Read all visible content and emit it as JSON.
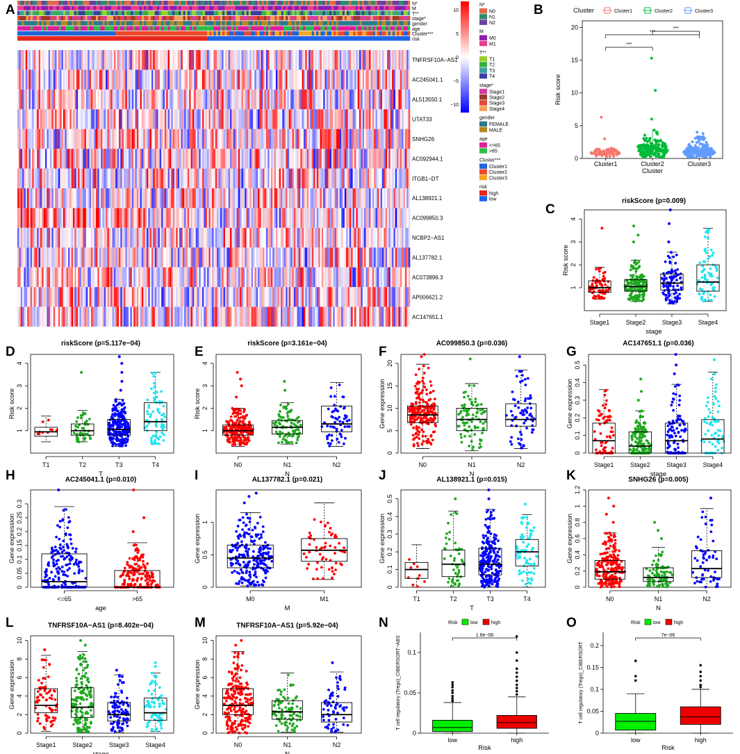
{
  "panel_labels": [
    "A",
    "B",
    "C",
    "D",
    "E",
    "F",
    "G",
    "H",
    "I",
    "J",
    "K",
    "L",
    "M",
    "N",
    "O"
  ],
  "colors": {
    "red": "#ff0000",
    "green": "#1fa91f",
    "blue": "#0000ff",
    "cyan": "#1ee6f0",
    "lowgreen": "#00ee00",
    "highred": "#ee0000"
  },
  "heatmap": {
    "annotation_rows": [
      "N*",
      "M",
      "T**",
      "stage*",
      "gender",
      "age",
      "Cluster***",
      "risk"
    ],
    "genes": [
      "TNFRSF10A−AS1",
      "AC245041.1",
      "AL513550.1",
      "UTAT33",
      "SNHG26",
      "AC092944.1",
      "ITGB1−DT",
      "AL138921.1",
      "AC099850.3",
      "NCBP2−AS1",
      "AL137782.1",
      "AC073896.3",
      "AP006621.2",
      "AC147651.1"
    ],
    "colorbar_ticks": [
      "10",
      "5",
      "0",
      "−5",
      "−10"
    ],
    "legend": [
      {
        "title": "N*",
        "items": [
          {
            "label": "N0",
            "color": "#e26a4a"
          },
          {
            "label": "N1",
            "color": "#2e8b6e"
          },
          {
            "label": "N2",
            "color": "#6c3fa0"
          }
        ]
      },
      {
        "title": "M",
        "items": [
          {
            "label": "M0",
            "color": "#8a1fb0"
          },
          {
            "label": "M1",
            "color": "#e83e8c"
          }
        ]
      },
      {
        "title": "T**",
        "items": [
          {
            "label": "T1",
            "color": "#9ad02c"
          },
          {
            "label": "T2",
            "color": "#35b13c"
          },
          {
            "label": "T3",
            "color": "#3aa0a0"
          },
          {
            "label": "T4",
            "color": "#3b3f9e"
          }
        ]
      },
      {
        "title": "stage*",
        "items": [
          {
            "label": "Stage1",
            "color": "#d03fa0"
          },
          {
            "label": "Stage2",
            "color": "#9c3a2a"
          },
          {
            "label": "Stage3",
            "color": "#e04a3a"
          },
          {
            "label": "Stage4",
            "color": "#f2a05a"
          }
        ]
      },
      {
        "title": "gender",
        "items": [
          {
            "label": "FEMALE",
            "color": "#2a7a8c"
          },
          {
            "label": "MALE",
            "color": "#b8861e"
          }
        ]
      },
      {
        "title": "age",
        "items": [
          {
            "label": "<=65",
            "color": "#e01e9a"
          },
          {
            "label": ">65",
            "color": "#2ebd4a"
          }
        ]
      },
      {
        "title": "Cluster***",
        "items": [
          {
            "label": "Cluster1",
            "color": "#2166d8"
          },
          {
            "label": "Cluster2",
            "color": "#f0482a"
          },
          {
            "label": "Cluster3",
            "color": "#f5a623"
          }
        ]
      },
      {
        "title": "risk",
        "items": [
          {
            "label": "high",
            "color": "#e8261c"
          },
          {
            "label": "low",
            "color": "#1e64e8"
          }
        ]
      }
    ]
  },
  "chart_data": [
    {
      "id": "B",
      "type": "box+jitter",
      "title": "",
      "legend_title": "Cluster",
      "legend": [
        "Cluster1",
        "Cluster2",
        "Cluster3"
      ],
      "xlabel": "Cluster",
      "ylabel": "Risk score",
      "categories": [
        "Cluster1",
        "Cluster2",
        "Cluster3"
      ],
      "ylim": [
        0,
        21
      ],
      "yticks": [
        0,
        5,
        10,
        15,
        20
      ],
      "medians": [
        0.8,
        1.4,
        1.0
      ],
      "q1": [
        0.6,
        1.0,
        0.8
      ],
      "q3": [
        1.0,
        2.0,
        1.3
      ],
      "whisker_low": [
        0.2,
        0.2,
        0.2
      ],
      "whisker_high": [
        1.6,
        4.5,
        3.4
      ],
      "n": [
        60,
        150,
        220
      ],
      "outliers": [
        [
          6.3,
          3.0
        ],
        [
          15.3,
          10.4,
          6.0
        ],
        [
          4.0,
          3.8
        ]
      ],
      "comparisons": [
        {
          "pair": [
            "Cluster1",
            "Cluster2"
          ],
          "label": "***",
          "y": 17.3
        },
        {
          "pair": [
            "Cluster1",
            "Cluster3"
          ],
          "label": "***",
          "y": 19.8
        },
        {
          "pair": [
            "Cluster2",
            "Cluster3"
          ],
          "label": "***",
          "y": 22.1
        }
      ],
      "colors": [
        "#f8766d",
        "#00ba38",
        "#619cff"
      ]
    },
    {
      "id": "C",
      "type": "box+jitter",
      "title": "riskScore (p=0.009)",
      "xlabel": "stage",
      "ylabel": "Risk score",
      "categories": [
        "Stage1",
        "Stage2",
        "Stage3",
        "Stage4"
      ],
      "ylim": [
        0,
        4.4
      ],
      "yticks": [
        1,
        2,
        3,
        4
      ],
      "medians": [
        1.0,
        1.05,
        1.2,
        1.25
      ],
      "q1": [
        0.8,
        0.85,
        0.9,
        0.85
      ],
      "q3": [
        1.3,
        1.35,
        1.6,
        2.0
      ],
      "whisker_low": [
        0.5,
        0.4,
        0.3,
        0.4
      ],
      "whisker_high": [
        1.9,
        2.2,
        2.55,
        3.6
      ],
      "n": [
        70,
        160,
        100,
        70
      ],
      "outliers": [
        [
          3.6
        ],
        [
          3.0,
          3.3,
          3.7
        ],
        [
          3.0,
          3.8,
          4.4
        ],
        []
      ],
      "colors": [
        "#ff0000",
        "#1fa91f",
        "#0000ff",
        "#1ee6f0"
      ]
    },
    {
      "id": "D",
      "type": "box+jitter",
      "title": "riskScore (p=5.117e−04)",
      "xlabel": "T",
      "ylabel": "Risk score",
      "categories": [
        "T1",
        "T2",
        "T3",
        "T4"
      ],
      "ylim": [
        0,
        4.4
      ],
      "yticks": [
        1,
        2,
        3,
        4
      ],
      "medians": [
        0.95,
        1.0,
        1.05,
        1.4
      ],
      "q1": [
        0.75,
        0.8,
        0.8,
        1.0
      ],
      "q3": [
        1.15,
        1.3,
        1.5,
        2.25
      ],
      "whisker_low": [
        0.5,
        0.5,
        0.3,
        0.4
      ],
      "whisker_high": [
        1.65,
        1.9,
        2.4,
        3.6
      ],
      "n": [
        10,
        50,
        300,
        70
      ],
      "outliers": [
        [],
        [
          3.6
        ],
        [
          2.8,
          3.2,
          3.6,
          4.0,
          4.3
        ],
        []
      ],
      "colors": [
        "#ff0000",
        "#1fa91f",
        "#0000ff",
        "#1ee6f0"
      ]
    },
    {
      "id": "E",
      "type": "box+jitter",
      "title": "riskScore (p=3.161e−04)",
      "xlabel": "N",
      "ylabel": "Risk score",
      "categories": [
        "N0",
        "N1",
        "N2"
      ],
      "ylim": [
        0,
        4.4
      ],
      "yticks": [
        1,
        2,
        3,
        4
      ],
      "medians": [
        1.0,
        1.15,
        1.3
      ],
      "q1": [
        0.8,
        0.85,
        0.95
      ],
      "q3": [
        1.25,
        1.45,
        2.1
      ],
      "whisker_low": [
        0.3,
        0.4,
        0.3
      ],
      "whisker_high": [
        2.0,
        2.25,
        3.15
      ],
      "n": [
        250,
        90,
        60
      ],
      "outliers": [
        [
          2.5,
          3.0,
          3.3,
          3.6
        ],
        [
          2.8,
          3.2
        ],
        []
      ],
      "colors": [
        "#ff0000",
        "#1fa91f",
        "#0000ff"
      ]
    },
    {
      "id": "F",
      "type": "box+jitter",
      "title": "AC099850.3 (p=0.036)",
      "xlabel": "N",
      "ylabel": "Gene expression",
      "categories": [
        "N0",
        "N1",
        "N2"
      ],
      "ylim": [
        0,
        22
      ],
      "yticks": [
        0,
        5,
        10,
        15,
        20
      ],
      "medians": [
        8.5,
        7.5,
        7.5
      ],
      "q1": [
        6.8,
        5.0,
        6.0
      ],
      "q3": [
        10.5,
        10.0,
        11.0
      ],
      "whisker_low": [
        1.0,
        0.5,
        1.0
      ],
      "whisker_high": [
        19.8,
        15.5,
        18.5
      ],
      "n": [
        280,
        90,
        70
      ],
      "outliers": [
        [
          21.5,
          22.0
        ],
        [
          21.0
        ],
        [
          21.5
        ]
      ],
      "colors": [
        "#ff0000",
        "#1fa91f",
        "#0000ff"
      ]
    },
    {
      "id": "G",
      "type": "box+jitter",
      "title": "AC147651.1 (p=0.036)",
      "xlabel": "stage",
      "ylabel": "Gene expression",
      "categories": [
        "Stage1",
        "Stage2",
        "Stage3",
        "Stage4"
      ],
      "ylim": [
        0,
        0.56
      ],
      "yticks": [
        0.0,
        0.1,
        0.2,
        0.3,
        0.4,
        0.5
      ],
      "medians": [
        0.07,
        0.04,
        0.07,
        0.08
      ],
      "q1": [
        0.0,
        0.0,
        0.0,
        0.0
      ],
      "q3": [
        0.17,
        0.12,
        0.17,
        0.19
      ],
      "whisker_low": [
        0.0,
        0.0,
        0.0,
        0.0
      ],
      "whisker_high": [
        0.36,
        0.24,
        0.39,
        0.46
      ],
      "n": [
        70,
        160,
        100,
        70
      ],
      "outliers": [
        [],
        [
          0.3,
          0.35,
          0.42
        ],
        [
          0.45,
          0.5,
          0.56
        ],
        [
          0.53
        ]
      ],
      "colors": [
        "#ff0000",
        "#1fa91f",
        "#0000ff",
        "#1ee6f0"
      ]
    },
    {
      "id": "H",
      "type": "box+jitter",
      "title": "AC245041.1 (p=0.010)",
      "xlabel": "age",
      "ylabel": "Gene expression",
      "categories": [
        "<=65",
        "&gt;65"
      ],
      "ylim": [
        0,
        0.35
      ],
      "yticks": [
        0.0,
        0.05,
        0.1,
        0.15,
        0.2,
        0.25,
        0.3
      ],
      "medians": [
        0.02,
        0.0
      ],
      "q1": [
        0.0,
        0.0
      ],
      "q3": [
        0.12,
        0.06
      ],
      "whisker_low": [
        0.0,
        0.0
      ],
      "whisker_high": [
        0.29,
        0.16
      ],
      "n": [
        200,
        180
      ],
      "outliers": [
        [
          0.35
        ],
        [
          0.2,
          0.25,
          0.35
        ]
      ],
      "colors": [
        "#0000ff",
        "#ff0000"
      ]
    },
    {
      "id": "I",
      "type": "box+jitter",
      "title": "AL137782.1 (p=0.021)",
      "xlabel": "M",
      "ylabel": "Gene expression",
      "categories": [
        "M0",
        "M1"
      ],
      "ylim": [
        0,
        1.5
      ],
      "yticks": [
        0.0,
        0.5,
        1.0
      ],
      "medians": [
        0.45,
        0.57
      ],
      "q1": [
        0.3,
        0.4
      ],
      "q3": [
        0.65,
        0.75
      ],
      "whisker_low": [
        0.02,
        0.12
      ],
      "whisker_high": [
        1.15,
        1.3
      ],
      "n": [
        380,
        60
      ],
      "outliers": [
        [
          1.3,
          1.4,
          1.45
        ],
        []
      ],
      "colors": [
        "#0000ff",
        "#ff0000"
      ]
    },
    {
      "id": "J",
      "type": "box+jitter",
      "title": "AL138921.1 (p=0.015)",
      "xlabel": "T",
      "ylabel": "Gene expression",
      "categories": [
        "T1",
        "T2",
        "T3",
        "T4"
      ],
      "ylim": [
        0,
        0.55
      ],
      "yticks": [
        0.0,
        0.1,
        0.2,
        0.3,
        0.4,
        0.5
      ],
      "medians": [
        0.1,
        0.13,
        0.13,
        0.2
      ],
      "q1": [
        0.05,
        0.06,
        0.07,
        0.12
      ],
      "q3": [
        0.14,
        0.21,
        0.22,
        0.27
      ],
      "whisker_low": [
        0.0,
        0.0,
        0.0,
        0.0
      ],
      "whisker_high": [
        0.24,
        0.43,
        0.44,
        0.41
      ],
      "n": [
        10,
        50,
        300,
        70
      ],
      "outliers": [
        [],
        [
          0.5
        ],
        [
          0.5,
          0.55
        ],
        [
          0.47
        ]
      ],
      "colors": [
        "#ff0000",
        "#1fa91f",
        "#0000ff",
        "#1ee6f0"
      ]
    },
    {
      "id": "K",
      "type": "box+jitter",
      "title": "SNHG26 (p=0.005)",
      "xlabel": "N",
      "ylabel": "Gene expression",
      "categories": [
        "N0",
        "N1",
        "N2"
      ],
      "ylim": [
        0,
        1.2
      ],
      "yticks": [
        0.0,
        0.2,
        0.4,
        0.6,
        0.8,
        1.0,
        1.2
      ],
      "medians": [
        0.19,
        0.12,
        0.23
      ],
      "q1": [
        0.1,
        0.07,
        0.12
      ],
      "q3": [
        0.33,
        0.24,
        0.45
      ],
      "whisker_low": [
        0.0,
        0.0,
        0.0
      ],
      "whisker_high": [
        0.67,
        0.49,
        0.97
      ],
      "n": [
        250,
        90,
        60
      ],
      "outliers": [
        [
          0.8,
          0.9,
          1.0,
          1.1
        ],
        [
          0.6,
          0.7,
          0.8
        ],
        [
          1.1
        ]
      ],
      "colors": [
        "#ff0000",
        "#1fa91f",
        "#0000ff"
      ]
    },
    {
      "id": "L",
      "type": "box+jitter",
      "title": "TNFRSF10A−AS1 (p=8.402e−04)",
      "xlabel": "stage",
      "ylabel": "Gene expression",
      "categories": [
        "Stage1",
        "Stage2",
        "Stage3",
        "Stage4"
      ],
      "ylim": [
        0,
        10.5
      ],
      "yticks": [
        0,
        2,
        4,
        6,
        8,
        10
      ],
      "medians": [
        3.0,
        2.8,
        2.0,
        2.2
      ],
      "q1": [
        2.2,
        1.7,
        1.3,
        1.4
      ],
      "q3": [
        4.8,
        4.9,
        3.3,
        3.8
      ],
      "whisker_low": [
        0.2,
        0.1,
        0.1,
        0.2
      ],
      "whisker_high": [
        8.4,
        8.8,
        6.3,
        6.5
      ],
      "n": [
        70,
        160,
        100,
        70
      ],
      "outliers": [
        [
          9.0
        ],
        [
          9.5,
          10.0
        ],
        [
          6.8
        ],
        [
          7.2,
          7.6
        ]
      ],
      "colors": [
        "#ff0000",
        "#1fa91f",
        "#0000ff",
        "#1ee6f0"
      ]
    },
    {
      "id": "M",
      "type": "box+jitter",
      "title": "TNFRSF10A−AS1 (p=5.92e−04)",
      "xlabel": "N",
      "ylabel": "Gene expression",
      "categories": [
        "N0",
        "N1",
        "N2"
      ],
      "ylim": [
        0,
        10.5
      ],
      "yticks": [
        0,
        2,
        4,
        6,
        8,
        10
      ],
      "medians": [
        3.0,
        2.3,
        2.0
      ],
      "q1": [
        2.0,
        1.5,
        1.2
      ],
      "q3": [
        4.8,
        3.5,
        3.3
      ],
      "whisker_low": [
        0.0,
        0.1,
        0.1
      ],
      "whisker_high": [
        8.8,
        6.5,
        6.6
      ],
      "n": [
        250,
        90,
        60
      ],
      "outliers": [
        [
          9.5,
          10.0
        ],
        [],
        [
          7.6
        ]
      ],
      "colors": [
        "#ff0000",
        "#1fa91f",
        "#0000ff"
      ]
    },
    {
      "id": "N",
      "type": "box",
      "title": "",
      "legend_title": "Risk",
      "legend": [
        "low",
        "high"
      ],
      "xlabel": "Risk",
      "ylabel": "T cell regulatory (Tregs)_CIBERSORT−ABS",
      "categories": [
        "low",
        "high"
      ],
      "ylim": [
        0,
        0.125
      ],
      "yticks": [
        0.0,
        0.05,
        0.1
      ],
      "medians": [
        0.007,
        0.013
      ],
      "q1": [
        0.002,
        0.006
      ],
      "q3": [
        0.016,
        0.022
      ],
      "whisker_low": [
        0.0,
        0.0
      ],
      "whisker_high": [
        0.038,
        0.045
      ],
      "outliers": [
        [
          0.04,
          0.043,
          0.046,
          0.05,
          0.053,
          0.057,
          0.06,
          0.063
        ],
        [
          0.048,
          0.052,
          0.056,
          0.06,
          0.065,
          0.07,
          0.075,
          0.08,
          0.09,
          0.1,
          0.12
        ]
      ],
      "pvalue": "1.6e−06",
      "colors": [
        "#00ee00",
        "#ee0000"
      ]
    },
    {
      "id": "O",
      "type": "box",
      "title": "",
      "legend_title": "Risk",
      "legend": [
        "low",
        "high"
      ],
      "xlabel": "Risk",
      "ylabel": "T cell regulatory (Tregs)_CIBERSORT",
      "categories": [
        "low",
        "high"
      ],
      "ylim": [
        0,
        0.23
      ],
      "yticks": [
        0.0,
        0.05,
        0.1,
        0.15,
        0.2
      ],
      "medians": [
        0.027,
        0.037
      ],
      "q1": [
        0.007,
        0.02
      ],
      "q3": [
        0.045,
        0.06
      ],
      "whisker_low": [
        0.0,
        0.0
      ],
      "whisker_high": [
        0.09,
        0.1
      ],
      "outliers": [
        [
          0.12,
          0.13,
          0.165
        ],
        [
          0.105,
          0.11,
          0.12,
          0.13,
          0.14,
          0.155
        ]
      ],
      "pvalue": "7e−06",
      "colors": [
        "#00ee00",
        "#ee0000"
      ]
    }
  ]
}
